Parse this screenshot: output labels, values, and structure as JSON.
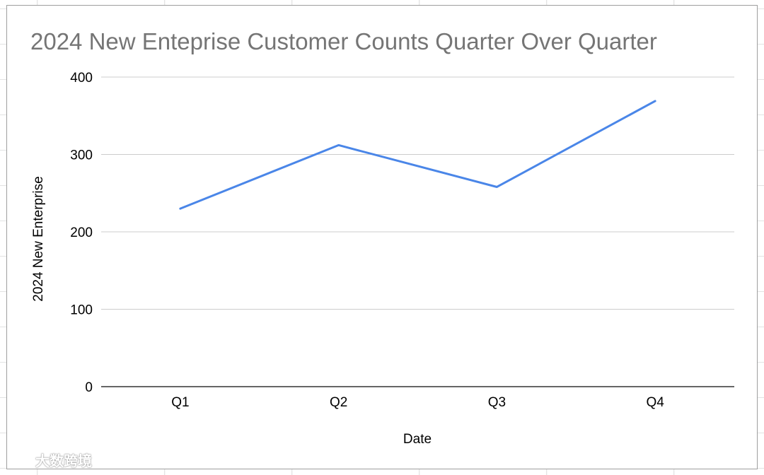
{
  "chart_data": {
    "type": "line",
    "title": "2024 New Enteprise Customer Counts Quarter Over Quarter",
    "xlabel": "Date",
    "ylabel": "2024 New Enterprise",
    "categories": [
      "Q1",
      "Q2",
      "Q3",
      "Q4"
    ],
    "series": [
      {
        "name": "",
        "values": [
          230,
          312,
          258,
          369
        ],
        "color": "#4a86e8"
      }
    ],
    "ylim": [
      0,
      400
    ],
    "yticks": [
      "0",
      "100",
      "200",
      "300",
      "400"
    ],
    "grid": true,
    "legend": "none"
  },
  "colors": {
    "title": "#757575",
    "gridline": "#cccccc",
    "axis": "#333333",
    "line": "#4a86e8"
  },
  "watermark": {
    "text": "大数跨境"
  }
}
